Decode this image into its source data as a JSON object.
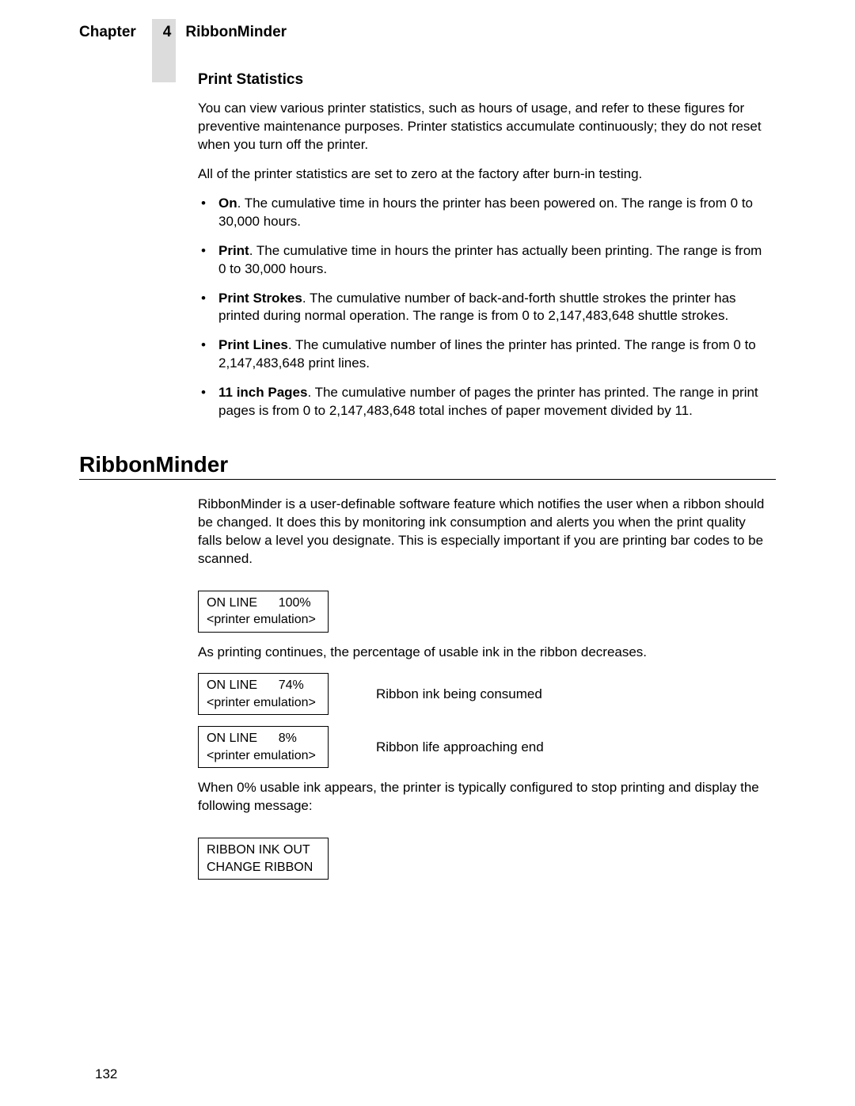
{
  "header": {
    "chapter_label": "Chapter",
    "chapter_number": "4",
    "chapter_title": "RibbonMinder"
  },
  "section1": {
    "title": "Print Statistics",
    "p1": "You can view various printer statistics, such as hours of usage, and refer to these figures for preventive maintenance purposes. Printer statistics accumulate continuously; they do not reset when you turn off the printer.",
    "p2": "All of the printer statistics are set to zero at the factory after burn-in testing.",
    "bullets": [
      {
        "bold": "On",
        "text": ". The cumulative time in hours the printer has been powered on. The range is from 0 to 30,000 hours."
      },
      {
        "bold": "Print",
        "text": ". The cumulative time in hours the printer has actually been printing. The range is from 0 to 30,000 hours."
      },
      {
        "bold": "Print Strokes",
        "text": ". The cumulative number of back-and-forth shuttle strokes the printer has printed during normal operation. The range is from 0 to 2,147,483,648 shuttle strokes."
      },
      {
        "bold": "Print Lines",
        "text": ". The cumulative number of lines the printer has printed. The range is from 0 to 2,147,483,648 print lines."
      },
      {
        "bold": "11 inch Pages",
        "text": ". The cumulative number of pages the printer has printed. The range in print pages is from 0 to 2,147,483,648 total inches of paper movement divided by 11."
      }
    ]
  },
  "section2": {
    "title": "RibbonMinder",
    "p1": "RibbonMinder is a user-definable software feature which notifies the user when a ribbon should be changed. It does this by monitoring ink consumption and alerts you when the print quality falls below a level you designate. This is especially important if you are printing bar codes to be scanned.",
    "display1_line1": "ON LINE      100%",
    "display1_line2": "<printer emulation>",
    "p2": "As printing continues, the percentage of usable ink in the ribbon decreases.",
    "display2_line1": "ON LINE      74%",
    "display2_line2": "<printer emulation>",
    "display2_caption": "Ribbon ink being consumed",
    "display3_line1": "ON LINE      8%",
    "display3_line2": "<printer emulation>",
    "display3_caption": "Ribbon life approaching end",
    "p3": "When 0% usable ink appears, the printer is typically configured to stop printing and display the following message:",
    "display4_line1": "RIBBON INK OUT",
    "display4_line2": "CHANGE RIBBON"
  },
  "page_number": "132"
}
